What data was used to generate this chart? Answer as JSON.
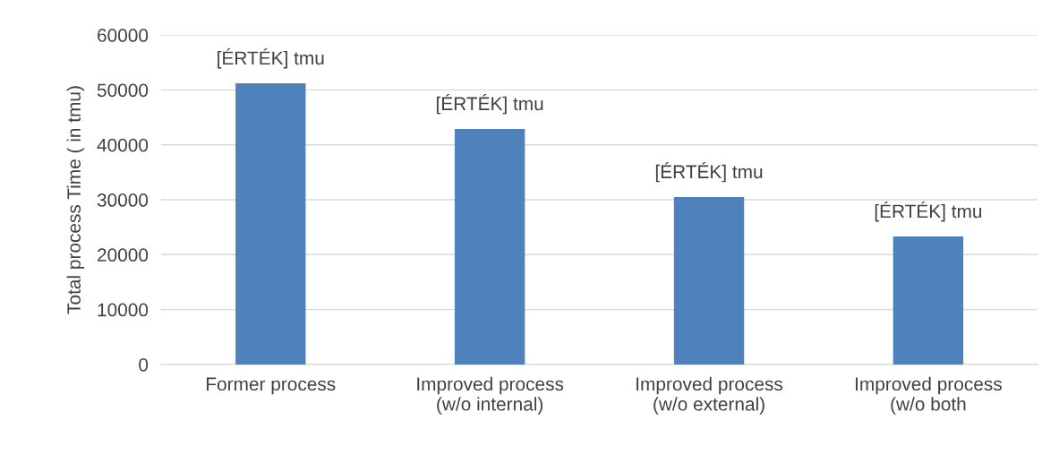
{
  "chart_data": {
    "type": "bar",
    "ylabel": "Total process Time ( in tmu)",
    "categories": [
      "Former process",
      "Improved process\n(w/o internal)",
      "Improved process\n(w/o external)",
      "Improved process\n(w/o both"
    ],
    "values": [
      51200,
      42900,
      30500,
      23300
    ],
    "value_labels": [
      "[ÉRTÉK] tmu",
      "[ÉRTÉK] tmu",
      "[ÉRTÉK] tmu",
      "[ÉRTÉK] tmu"
    ],
    "color": "#4f81bd",
    "ylim": [
      0,
      60000
    ],
    "yticks": [
      0,
      10000,
      20000,
      30000,
      40000,
      50000,
      60000
    ],
    "grid": "y",
    "legend": false
  }
}
